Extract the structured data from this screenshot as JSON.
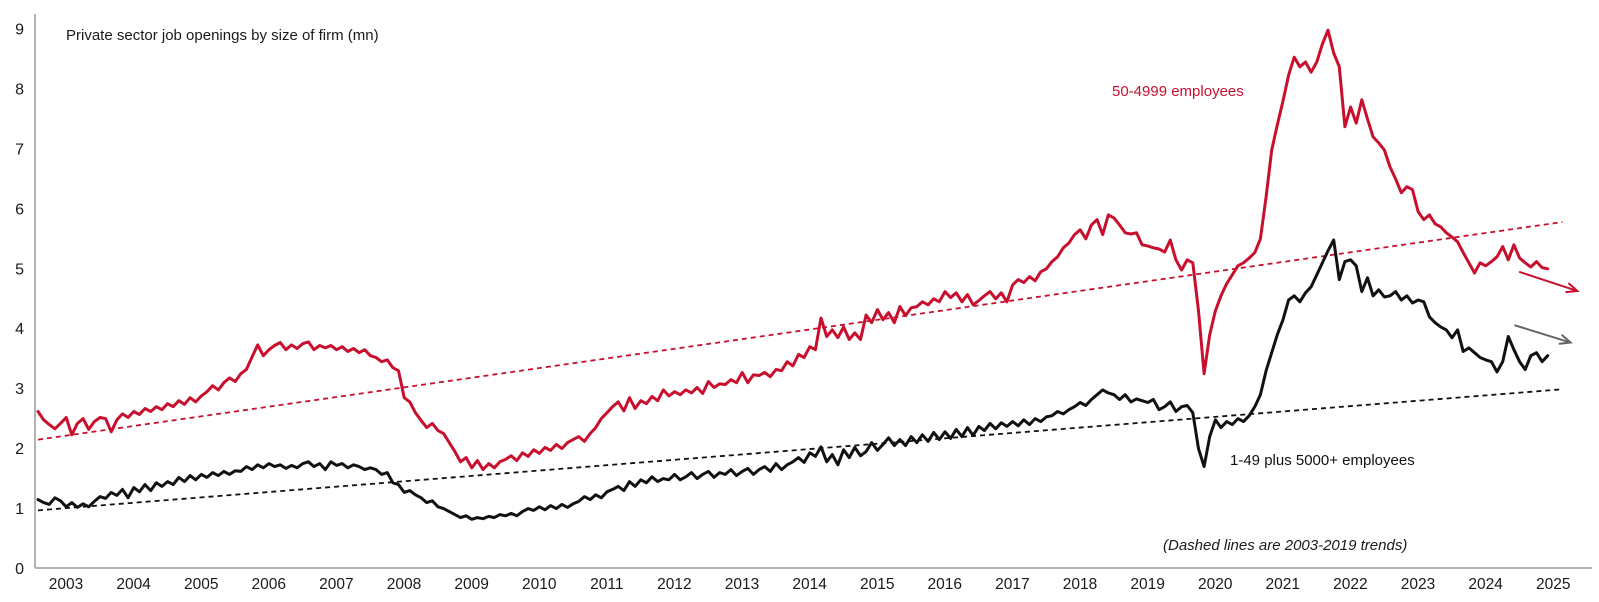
{
  "chart_data": {
    "type": "line",
    "title": "Private sector job openings by size of firm (mn)",
    "note": "(Dashed lines are 2003-2019 trends)",
    "xlabel": "",
    "ylabel": "",
    "grid": false,
    "legend_position": "inline-annotations",
    "x_axis": {
      "start_year": 2003,
      "end_year": 2025,
      "tick_labels": [
        "2003",
        "2004",
        "2005",
        "2006",
        "2007",
        "2008",
        "2009",
        "2010",
        "2011",
        "2012",
        "2013",
        "2014",
        "2015",
        "2016",
        "2017",
        "2018",
        "2019",
        "2020",
        "2021",
        "2022",
        "2023",
        "2024",
        "2025"
      ]
    },
    "y_axis": {
      "min": 0,
      "max": 9,
      "tick_labels": [
        "0",
        "1",
        "2",
        "3",
        "4",
        "5",
        "6",
        "7",
        "8",
        "9"
      ]
    },
    "x_start": 2003.0,
    "x_step": 0.0833333,
    "series": [
      {
        "name": "50-4999 employees",
        "color": "#c8102e",
        "values": [
          2.62,
          2.48,
          2.4,
          2.33,
          2.42,
          2.52,
          2.23,
          2.42,
          2.5,
          2.32,
          2.45,
          2.52,
          2.5,
          2.28,
          2.48,
          2.58,
          2.52,
          2.62,
          2.57,
          2.67,
          2.62,
          2.7,
          2.65,
          2.75,
          2.7,
          2.8,
          2.74,
          2.85,
          2.78,
          2.88,
          2.95,
          3.05,
          2.98,
          3.1,
          3.18,
          3.12,
          3.25,
          3.32,
          3.53,
          3.73,
          3.55,
          3.65,
          3.72,
          3.77,
          3.65,
          3.73,
          3.67,
          3.75,
          3.78,
          3.65,
          3.72,
          3.68,
          3.72,
          3.65,
          3.7,
          3.62,
          3.67,
          3.6,
          3.65,
          3.55,
          3.52,
          3.45,
          3.48,
          3.35,
          3.3,
          2.85,
          2.78,
          2.6,
          2.47,
          2.35,
          2.42,
          2.3,
          2.25,
          2.1,
          1.95,
          1.78,
          1.85,
          1.68,
          1.8,
          1.65,
          1.75,
          1.68,
          1.78,
          1.82,
          1.88,
          1.8,
          1.93,
          1.87,
          1.98,
          1.92,
          2.02,
          1.97,
          2.07,
          2.0,
          2.1,
          2.15,
          2.2,
          2.12,
          2.25,
          2.35,
          2.5,
          2.6,
          2.7,
          2.78,
          2.63,
          2.85,
          2.67,
          2.8,
          2.75,
          2.87,
          2.8,
          2.98,
          2.88,
          2.95,
          2.9,
          2.98,
          2.93,
          3.02,
          2.92,
          3.12,
          3.02,
          3.08,
          3.07,
          3.15,
          3.1,
          3.27,
          3.1,
          3.23,
          3.22,
          3.27,
          3.2,
          3.32,
          3.3,
          3.45,
          3.38,
          3.57,
          3.52,
          3.7,
          3.65,
          4.18,
          3.87,
          3.98,
          3.85,
          4.03,
          3.82,
          3.93,
          3.82,
          4.23,
          4.1,
          4.32,
          4.15,
          4.27,
          4.1,
          4.37,
          4.22,
          4.35,
          4.37,
          4.45,
          4.4,
          4.5,
          4.45,
          4.62,
          4.52,
          4.6,
          4.45,
          4.57,
          4.4,
          4.47,
          4.55,
          4.62,
          4.5,
          4.6,
          4.45,
          4.73,
          4.82,
          4.77,
          4.87,
          4.8,
          4.95,
          5.0,
          5.12,
          5.2,
          5.35,
          5.43,
          5.57,
          5.65,
          5.5,
          5.73,
          5.82,
          5.57,
          5.9,
          5.85,
          5.73,
          5.6,
          5.58,
          5.6,
          5.4,
          5.38,
          5.35,
          5.33,
          5.28,
          5.48,
          5.15,
          4.98,
          5.15,
          5.1,
          4.3,
          3.25,
          3.9,
          4.3,
          4.55,
          4.75,
          4.9,
          5.05,
          5.1,
          5.18,
          5.27,
          5.5,
          6.2,
          6.98,
          7.4,
          7.8,
          8.23,
          8.53,
          8.37,
          8.45,
          8.28,
          8.45,
          8.75,
          8.98,
          8.6,
          8.37,
          7.37,
          7.7,
          7.43,
          7.82,
          7.5,
          7.2,
          7.1,
          6.98,
          6.7,
          6.5,
          6.27,
          6.37,
          6.32,
          5.95,
          5.82,
          5.9,
          5.75,
          5.7,
          5.6,
          5.53,
          5.45,
          5.27,
          5.1,
          4.93,
          5.1,
          5.05,
          5.12,
          5.2,
          5.37,
          5.15,
          5.4,
          5.18,
          5.1,
          5.03,
          5.12,
          5.02,
          5.0
        ]
      },
      {
        "name": "1-49 plus 5000+ employees",
        "color": "#111111",
        "values": [
          1.15,
          1.1,
          1.07,
          1.18,
          1.13,
          1.03,
          1.1,
          1.02,
          1.08,
          1.03,
          1.12,
          1.2,
          1.17,
          1.27,
          1.22,
          1.32,
          1.18,
          1.35,
          1.28,
          1.4,
          1.3,
          1.43,
          1.37,
          1.45,
          1.4,
          1.52,
          1.45,
          1.55,
          1.48,
          1.57,
          1.52,
          1.6,
          1.55,
          1.62,
          1.57,
          1.63,
          1.62,
          1.7,
          1.65,
          1.73,
          1.68,
          1.75,
          1.7,
          1.73,
          1.67,
          1.72,
          1.68,
          1.75,
          1.78,
          1.7,
          1.75,
          1.65,
          1.78,
          1.72,
          1.75,
          1.68,
          1.73,
          1.7,
          1.65,
          1.68,
          1.65,
          1.57,
          1.6,
          1.43,
          1.4,
          1.27,
          1.3,
          1.23,
          1.18,
          1.1,
          1.13,
          1.03,
          1.0,
          0.95,
          0.9,
          0.85,
          0.88,
          0.82,
          0.85,
          0.83,
          0.87,
          0.85,
          0.9,
          0.88,
          0.92,
          0.88,
          0.95,
          1.0,
          0.97,
          1.03,
          0.98,
          1.05,
          1.0,
          1.07,
          1.02,
          1.08,
          1.12,
          1.2,
          1.15,
          1.23,
          1.18,
          1.28,
          1.32,
          1.37,
          1.3,
          1.45,
          1.37,
          1.48,
          1.43,
          1.53,
          1.45,
          1.5,
          1.48,
          1.57,
          1.48,
          1.53,
          1.6,
          1.5,
          1.57,
          1.62,
          1.52,
          1.6,
          1.57,
          1.65,
          1.55,
          1.62,
          1.67,
          1.57,
          1.65,
          1.7,
          1.62,
          1.75,
          1.65,
          1.73,
          1.78,
          1.85,
          1.77,
          1.93,
          1.87,
          2.03,
          1.78,
          1.9,
          1.73,
          1.98,
          1.85,
          2.02,
          1.88,
          1.95,
          2.1,
          1.97,
          2.07,
          2.18,
          2.05,
          2.15,
          2.05,
          2.2,
          2.1,
          2.23,
          2.12,
          2.27,
          2.15,
          2.28,
          2.17,
          2.32,
          2.2,
          2.35,
          2.22,
          2.37,
          2.3,
          2.42,
          2.33,
          2.43,
          2.37,
          2.45,
          2.38,
          2.48,
          2.4,
          2.5,
          2.45,
          2.53,
          2.55,
          2.62,
          2.58,
          2.65,
          2.7,
          2.77,
          2.72,
          2.82,
          2.9,
          2.98,
          2.93,
          2.9,
          2.82,
          2.9,
          2.78,
          2.83,
          2.8,
          2.77,
          2.82,
          2.65,
          2.7,
          2.78,
          2.62,
          2.7,
          2.72,
          2.6,
          2.0,
          1.7,
          2.2,
          2.48,
          2.35,
          2.45,
          2.4,
          2.5,
          2.45,
          2.55,
          2.7,
          2.9,
          3.3,
          3.6,
          3.9,
          4.15,
          4.48,
          4.55,
          4.45,
          4.6,
          4.7,
          4.9,
          5.1,
          5.3,
          5.48,
          4.82,
          5.12,
          5.15,
          5.05,
          4.62,
          4.85,
          4.55,
          4.65,
          4.53,
          4.55,
          4.62,
          4.48,
          4.55,
          4.43,
          4.48,
          4.45,
          4.2,
          4.1,
          4.03,
          3.98,
          3.85,
          3.98,
          3.62,
          3.68,
          3.6,
          3.52,
          3.48,
          3.45,
          3.28,
          3.45,
          3.87,
          3.65,
          3.45,
          3.32,
          3.55,
          3.6,
          3.45,
          3.55
        ]
      }
    ],
    "trend_lines": [
      {
        "name": "trend-50-4999-2003-2019",
        "color": "#c8102e",
        "from": [
          2003.0,
          2.15
        ],
        "to": [
          2025.55,
          5.78
        ]
      },
      {
        "name": "trend-1-49-5000-2003-2019",
        "color": "#111111",
        "from": [
          2003.0,
          0.97
        ],
        "to": [
          2025.55,
          2.99
        ]
      }
    ],
    "arrows": [
      {
        "name": "red-outlook-arrow",
        "color": "#c8102e",
        "from": [
          2024.91,
          4.95
        ],
        "to": [
          2025.77,
          4.63
        ]
      },
      {
        "name": "gray-outlook-arrow",
        "color": "#636363",
        "from": [
          2024.84,
          4.06
        ],
        "to": [
          2025.67,
          3.77
        ]
      }
    ],
    "colors": {
      "accent_red": "#c8102e",
      "line_black": "#111111",
      "axis_gray": "#b3b3b3",
      "text": "#1a1a1a"
    }
  },
  "labels": {
    "title": "Private sector job openings by size of firm (mn)",
    "series_red": "50-4999 employees",
    "series_black": "1-49 plus 5000+ employees",
    "note": "(Dashed lines are 2003-2019 trends)"
  }
}
